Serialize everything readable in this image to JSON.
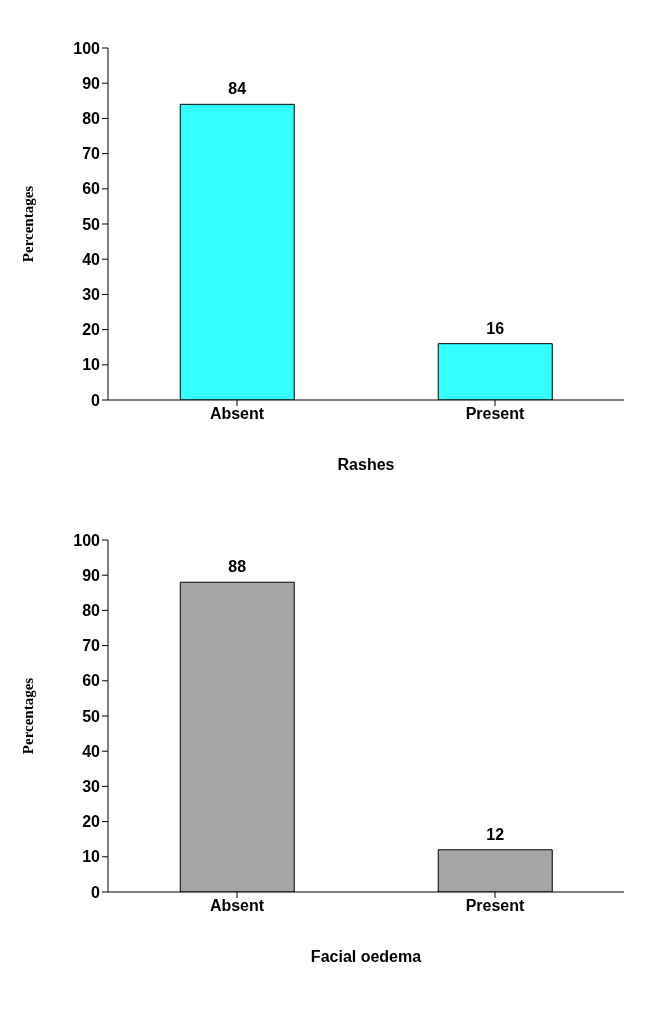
{
  "chart_data": [
    {
      "type": "bar",
      "categories": [
        "Absent",
        "Present"
      ],
      "values": [
        84,
        16
      ],
      "color": "#33ffff",
      "xlabel": "Rashes",
      "ylabel": "Percentages",
      "ylim": [
        0,
        100
      ],
      "yticks": [
        0,
        10,
        20,
        30,
        40,
        50,
        60,
        70,
        80,
        90,
        100
      ],
      "data_labels": true
    },
    {
      "type": "bar",
      "categories": [
        "Absent",
        "Present"
      ],
      "values": [
        88,
        12
      ],
      "color": "#a6a6a6",
      "xlabel": "Facial oedema",
      "ylabel": "Percentages",
      "ylim": [
        0,
        100
      ],
      "yticks": [
        0,
        10,
        20,
        30,
        40,
        50,
        60,
        70,
        80,
        90,
        100
      ],
      "data_labels": true
    }
  ]
}
